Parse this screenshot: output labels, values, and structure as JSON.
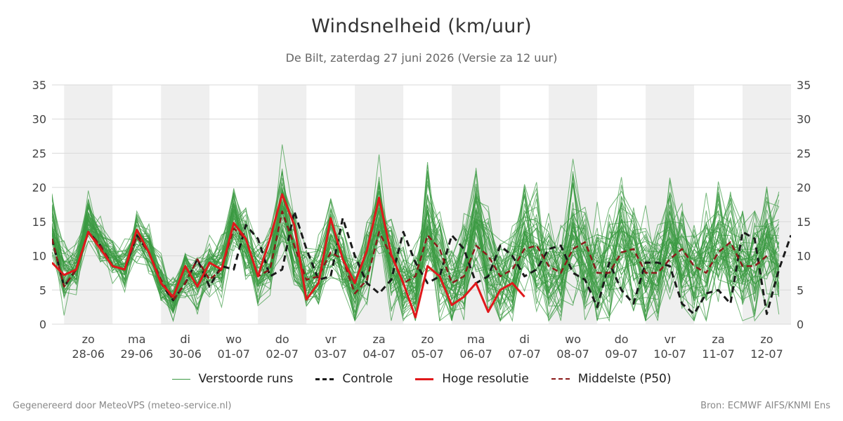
{
  "footer": {
    "generated": "Gegenereerd door MeteoVPS (meteo-service.nl)",
    "source": "Bron: ECMWF AIFS/KNMI Ens"
  },
  "colors": {
    "ensemble": "#3a9a42",
    "control": "#1a1a1a",
    "high_res": "#e0181b",
    "median": "#8b1a1a",
    "band": "#efefef",
    "grid": "#d9d9d9"
  },
  "chart_data": {
    "type": "line",
    "title": "Windsnelheid (km/uur)",
    "subtitle": "De Bilt, zaterdag 27 juni 2026 (Versie za 12 uur)",
    "ylim": [
      0,
      35
    ],
    "yticks": [
      0,
      5,
      10,
      15,
      20,
      25,
      30,
      35
    ],
    "xlim": [
      -0.25,
      15.0
    ],
    "grid": "horizontal",
    "legend_position": "bottom-center",
    "x_unit": "days from 28-06 00:00",
    "days": [
      {
        "weekday": "zo",
        "date": "28-06"
      },
      {
        "weekday": "ma",
        "date": "29-06"
      },
      {
        "weekday": "di",
        "date": "30-06"
      },
      {
        "weekday": "wo",
        "date": "01-07"
      },
      {
        "weekday": "do",
        "date": "02-07"
      },
      {
        "weekday": "vr",
        "date": "03-07"
      },
      {
        "weekday": "za",
        "date": "04-07"
      },
      {
        "weekday": "zo",
        "date": "05-07"
      },
      {
        "weekday": "ma",
        "date": "06-07"
      },
      {
        "weekday": "di",
        "date": "07-07"
      },
      {
        "weekday": "wo",
        "date": "08-07"
      },
      {
        "weekday": "do",
        "date": "09-07"
      },
      {
        "weekday": "vr",
        "date": "10-07"
      },
      {
        "weekday": "za",
        "date": "11-07"
      },
      {
        "weekday": "zo",
        "date": "12-07"
      }
    ],
    "shaded_days": [
      0,
      2,
      4,
      6,
      8,
      10,
      12,
      14
    ],
    "series": [
      {
        "name": "Verstoorde runs",
        "style": "thin",
        "members": 50,
        "x_start": -0.25,
        "x_step": 0.25,
        "mean": [
          14.5,
          6.5,
          8.5,
          15.5,
          12.0,
          9.0,
          8.5,
          13.0,
          11.0,
          6.0,
          3.5,
          8.0,
          6.0,
          8.5,
          8.0,
          15.5,
          12.0,
          7.0,
          9.0,
          18.0,
          10.0,
          6.5,
          7.0,
          13.5,
          9.0,
          4.5,
          9.0,
          17.0,
          9.0,
          6.0,
          5.0,
          14.5,
          7.0,
          6.0,
          7.5,
          15.0,
          9.5,
          6.5,
          7.0,
          14.0,
          10.0,
          7.5,
          8.0,
          14.0,
          9.5,
          7.5,
          8.5,
          13.0,
          10.0,
          7.5,
          8.0,
          13.0,
          10.0,
          8.0,
          9.0,
          12.5,
          10.5,
          8.5,
          8.5,
          11.5,
          10.5
        ],
        "spread": [
          3.5,
          4.0,
          3.0,
          2.5,
          2.5,
          2.5,
          3.0,
          3.0,
          3.0,
          3.0,
          2.5,
          3.0,
          3.0,
          3.5,
          3.5,
          3.5,
          4.0,
          4.0,
          4.0,
          5.0,
          4.0,
          4.0,
          4.0,
          5.0,
          4.5,
          4.5,
          5.0,
          5.0,
          5.5,
          5.0,
          5.0,
          6.0,
          6.5,
          6.0,
          6.5,
          6.5,
          6.5,
          6.0,
          6.0,
          6.5,
          6.5,
          6.0,
          6.5,
          7.0,
          7.0,
          6.5,
          6.5,
          7.0,
          6.5,
          6.5,
          6.5,
          7.0,
          6.5,
          6.5,
          7.0,
          7.0,
          7.0,
          7.0,
          7.0,
          7.0,
          7.0
        ]
      },
      {
        "name": "Controle",
        "style": "dashed",
        "x_start": -0.25,
        "x_step": 0.25,
        "values": [
          12.5,
          5.5,
          8.0,
          13.5,
          11.5,
          8.5,
          8.0,
          13.0,
          10.5,
          6.0,
          3.5,
          6.0,
          9.5,
          5.5,
          8.5,
          8.0,
          14.5,
          12.5,
          7.0,
          8.0,
          16.5,
          11.0,
          6.5,
          7.0,
          15.5,
          10.0,
          6.0,
          4.5,
          6.5,
          13.5,
          9.0,
          6.0,
          7.0,
          13.0,
          11.0,
          6.0,
          7.0,
          11.5,
          10.0,
          7.0,
          8.0,
          11.0,
          11.5,
          7.5,
          6.5,
          2.5,
          9.0,
          5.0,
          3.0,
          9.0,
          9.0,
          8.5,
          3.0,
          1.5,
          4.5,
          5.0,
          3.0,
          13.5,
          12.5,
          1.5,
          8.0,
          13.0
        ]
      },
      {
        "name": "Hoge resolutie",
        "style": "thick",
        "x_start": -0.25,
        "x_step": 0.25,
        "values": [
          9.0,
          7.2,
          8.0,
          13.5,
          11.0,
          8.5,
          8.0,
          13.8,
          10.5,
          6.0,
          4.0,
          8.5,
          5.5,
          9.0,
          8.0,
          14.8,
          12.5,
          7.0,
          12.5,
          19.0,
          14.5,
          3.6,
          6.0,
          15.5,
          9.5,
          6.0,
          10.8,
          18.5,
          10.2,
          6.0,
          1.0,
          8.5,
          7.0,
          2.8,
          4.0,
          6.0,
          1.8,
          5.0,
          6.0,
          4.0
        ]
      },
      {
        "name": "Middelste (P50)",
        "style": "dashed",
        "x_start": -0.25,
        "x_step": 0.25,
        "values": [
          12.5,
          5.5,
          8.0,
          13.5,
          11.5,
          8.5,
          8.0,
          12.8,
          10.5,
          6.5,
          3.5,
          6.0,
          9.5,
          6.5,
          8.0,
          14.0,
          12.5,
          7.0,
          8.0,
          16.5,
          11.5,
          6.5,
          7.0,
          10.5,
          9.5,
          4.5,
          6.5,
          13.5,
          10.0,
          6.0,
          7.0,
          13.0,
          11.0,
          6.0,
          7.0,
          11.5,
          10.0,
          7.0,
          8.0,
          11.0,
          11.5,
          8.5,
          7.5,
          11.0,
          12.0,
          7.5,
          7.5,
          10.5,
          11.0,
          7.5,
          7.5,
          9.5,
          11.0,
          8.5,
          7.5,
          10.5,
          12.0,
          8.5,
          8.5,
          10.0
        ]
      }
    ]
  }
}
